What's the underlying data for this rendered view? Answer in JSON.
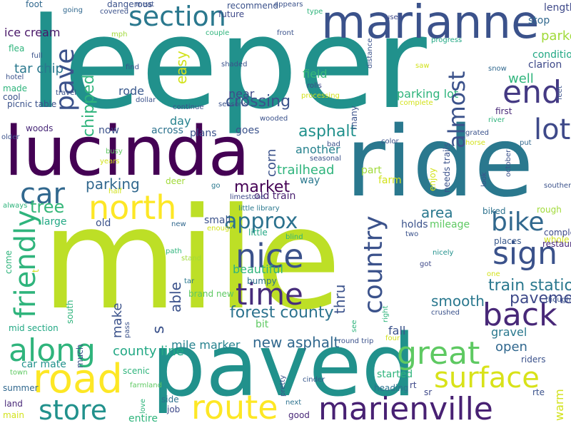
{
  "words": [
    {
      "text": "mile",
      "color": "#bddf26"
    },
    {
      "text": "leeper",
      "color": "#21918c"
    },
    {
      "text": "ride",
      "color": "#2a788e"
    },
    {
      "text": "lucinda",
      "color": "#440154"
    },
    {
      "text": "paved",
      "color": "#21918c"
    },
    {
      "text": "marianne",
      "color": "#3b528b"
    },
    {
      "text": "marienville",
      "color": "#482173"
    },
    {
      "text": "road",
      "color": "#fde725"
    },
    {
      "text": "route",
      "color": "#fde725"
    },
    {
      "text": "great",
      "color": "#5ec962"
    },
    {
      "text": "north",
      "color": "#fde725"
    },
    {
      "text": "section",
      "color": "#2a788e"
    },
    {
      "text": "surface",
      "color": "#d8e219"
    },
    {
      "text": "along",
      "color": "#2fb47c"
    },
    {
      "text": "store",
      "color": "#21918c"
    },
    {
      "text": "nice",
      "color": "#3b528b"
    },
    {
      "text": "time",
      "color": "#472d7b"
    },
    {
      "text": "back",
      "color": "#482878"
    },
    {
      "text": "sign",
      "color": "#3b528b"
    },
    {
      "text": "lot",
      "color": "#3e4989"
    },
    {
      "text": "end",
      "color": "#443983"
    },
    {
      "text": "car",
      "color": "#31688e"
    },
    {
      "text": "bike",
      "color": "#31688e"
    },
    {
      "text": "approx",
      "color": "#2c728e"
    },
    {
      "text": "asphalt",
      "color": "#21918c"
    },
    {
      "text": "tree",
      "color": "#35b779"
    },
    {
      "text": "market",
      "color": "#440154"
    },
    {
      "text": "parking",
      "color": "#31688e"
    },
    {
      "text": "train station",
      "color": "#2a788e"
    },
    {
      "text": "forest county",
      "color": "#2c728e"
    },
    {
      "text": "new asphalt",
      "color": "#31688e"
    },
    {
      "text": "area",
      "color": "#2a788e"
    },
    {
      "text": "smooth",
      "color": "#2a788e"
    },
    {
      "text": "pavement",
      "color": "#3e4989"
    },
    {
      "text": "mile marker",
      "color": "#26828e"
    },
    {
      "text": "county line",
      "color": "#22a884"
    },
    {
      "text": "crossing",
      "color": "#3b528b"
    },
    {
      "text": "trailhead",
      "color": "#2fb47c"
    },
    {
      "text": "beautiful",
      "color": "#2fb47c"
    },
    {
      "text": "gravel",
      "color": "#2a788e"
    },
    {
      "text": "open",
      "color": "#31688e"
    },
    {
      "text": "well",
      "color": "#2fb47c"
    },
    {
      "text": "parked",
      "color": "#a0da39"
    },
    {
      "text": "tar chip",
      "color": "#2a788e"
    },
    {
      "text": "ice cream",
      "color": "#481668"
    },
    {
      "text": "rode",
      "color": "#38588c"
    },
    {
      "text": "near",
      "color": "#3e4989"
    },
    {
      "text": "field",
      "color": "#37b878"
    },
    {
      "text": "another",
      "color": "#26828e"
    },
    {
      "text": "parking lot",
      "color": "#2fb47c"
    },
    {
      "text": "old train",
      "color": "#481f70"
    },
    {
      "text": "part",
      "color": "#a0da39"
    },
    {
      "text": "farm",
      "color": "#d2e21b"
    },
    {
      "text": "way",
      "color": "#2a788e"
    },
    {
      "text": "old",
      "color": "#3b528b"
    },
    {
      "text": "large",
      "color": "#22a884"
    },
    {
      "text": "car mate",
      "color": "#21918c"
    },
    {
      "text": "day",
      "color": "#26828e"
    },
    {
      "text": "goes",
      "color": "#3b528b"
    },
    {
      "text": "now",
      "color": "#3b528b"
    },
    {
      "text": "across",
      "color": "#2c728e"
    },
    {
      "text": "plans",
      "color": "#3b528b"
    },
    {
      "text": "woods",
      "color": "#482878"
    },
    {
      "text": "first",
      "color": "#482878"
    },
    {
      "text": "clarion",
      "color": "#3e4989"
    },
    {
      "text": "condition",
      "color": "#22a884"
    },
    {
      "text": "stop",
      "color": "#31688e"
    },
    {
      "text": "length",
      "color": "#3e4989"
    },
    {
      "text": "rough",
      "color": "#a0da39"
    },
    {
      "text": "mileage",
      "color": "#5ec962"
    },
    {
      "text": "holds",
      "color": "#3b528b"
    },
    {
      "text": "small",
      "color": "#3b528b"
    },
    {
      "text": "whole",
      "color": "#d2e21b"
    },
    {
      "text": "completed",
      "color": "#3e4989"
    },
    {
      "text": "restaurant",
      "color": "#482878"
    },
    {
      "text": "places",
      "color": "#38588c"
    },
    {
      "text": "biked",
      "color": "#2c728e"
    },
    {
      "text": "fall",
      "color": "#3b528b"
    },
    {
      "text": "bit",
      "color": "#5ec962"
    },
    {
      "text": "scenic",
      "color": "#2fb47c"
    },
    {
      "text": "started",
      "color": "#2fb47c"
    },
    {
      "text": "heading",
      "color": "#2c728e"
    },
    {
      "text": "rt",
      "color": "#3e4989"
    },
    {
      "text": "sr",
      "color": "#3e4989"
    },
    {
      "text": "rte",
      "color": "#3b528b"
    },
    {
      "text": "riders",
      "color": "#3b528b"
    },
    {
      "text": "entire",
      "color": "#2fb47c"
    },
    {
      "text": "job",
      "color": "#3e4989"
    },
    {
      "text": "side",
      "color": "#2c728e"
    },
    {
      "text": "good",
      "color": "#482878"
    },
    {
      "text": "next",
      "color": "#2c728e"
    },
    {
      "text": "cinder",
      "color": "#38588c"
    },
    {
      "text": "main",
      "color": "#d2e21b"
    },
    {
      "text": "land",
      "color": "#482878"
    },
    {
      "text": "summer",
      "color": "#31688e"
    },
    {
      "text": "town",
      "color": "#5ec962"
    },
    {
      "text": "farmland",
      "color": "#5ec962"
    },
    {
      "text": "mid section",
      "color": "#22a884"
    },
    {
      "text": "brand new",
      "color": "#5ec962"
    },
    {
      "text": "tar",
      "color": "#2a788e"
    },
    {
      "text": "stand",
      "color": "#a0da39"
    },
    {
      "text": "path",
      "color": "#2fb47c"
    },
    {
      "text": "new",
      "color": "#31688e"
    },
    {
      "text": "enough",
      "color": "#d2e21b"
    },
    {
      "text": "bumpy",
      "color": "#2c728e"
    },
    {
      "text": "little",
      "color": "#22a884"
    },
    {
      "text": "blind",
      "color": "#2fb47c"
    },
    {
      "text": "two",
      "color": "#3b528b"
    },
    {
      "text": "nicely",
      "color": "#21918c"
    },
    {
      "text": "got",
      "color": "#3e4989"
    },
    {
      "text": "one",
      "color": "#d2e21b"
    },
    {
      "text": "though",
      "color": "#3b528b"
    },
    {
      "text": "round trip",
      "color": "#3b528b"
    },
    {
      "text": "four",
      "color": "#d2e21b"
    },
    {
      "text": "crushed",
      "color": "#3b528b"
    },
    {
      "text": "little library",
      "color": "#2a788e"
    },
    {
      "text": "limestone",
      "color": "#3e4989"
    },
    {
      "text": "go",
      "color": "#2a788e"
    },
    {
      "text": "deer",
      "color": "#a0da39"
    },
    {
      "text": "half",
      "color": "#d2e21b"
    },
    {
      "text": "years",
      "color": "#d2e21b"
    },
    {
      "text": "busy",
      "color": "#5ec962"
    },
    {
      "text": "bad",
      "color": "#3b528b"
    },
    {
      "text": "seasonal",
      "color": "#3b528b"
    },
    {
      "text": "color",
      "color": "#3b528b"
    },
    {
      "text": "grated",
      "color": "#3b528b"
    },
    {
      "text": "horse",
      "color": "#d2e21b"
    },
    {
      "text": "put",
      "color": "#31688e"
    },
    {
      "text": "southern",
      "color": "#3b528b"
    },
    {
      "text": "river",
      "color": "#2fb47c"
    },
    {
      "text": "snow",
      "color": "#31688e"
    },
    {
      "text": "saw",
      "color": "#d2e21b"
    },
    {
      "text": "complete",
      "color": "#d2e21b"
    },
    {
      "text": "rolls",
      "color": "#3e4989"
    },
    {
      "text": "processing",
      "color": "#d2e21b"
    },
    {
      "text": "progress",
      "color": "#22a884"
    },
    {
      "text": "front",
      "color": "#3b528b"
    },
    {
      "text": "type",
      "color": "#2fb47c"
    },
    {
      "text": "used",
      "color": "#3e4989"
    },
    {
      "text": "appears",
      "color": "#3b528b"
    },
    {
      "text": "recommend",
      "color": "#3b528b"
    },
    {
      "text": "future",
      "color": "#3e4989"
    },
    {
      "text": "couple",
      "color": "#2fb47c"
    },
    {
      "text": "shaded",
      "color": "#3b528b"
    },
    {
      "text": "wooded",
      "color": "#3b528b"
    },
    {
      "text": "seasons",
      "color": "#3b528b"
    },
    {
      "text": "continue",
      "color": "#3b528b"
    },
    {
      "text": "dollar",
      "color": "#3b528b"
    },
    {
      "text": "find",
      "color": "#3b528b"
    },
    {
      "text": "mph",
      "color": "#a0da39"
    },
    {
      "text": "covered",
      "color": "#3b528b"
    },
    {
      "text": "meat",
      "color": "#3b528b"
    },
    {
      "text": "dangerous",
      "color": "#3b528b"
    },
    {
      "text": "going",
      "color": "#31688e"
    },
    {
      "text": "foot",
      "color": "#31688e"
    },
    {
      "text": "flea",
      "color": "#2fb47c"
    },
    {
      "text": "full",
      "color": "#3b528b"
    },
    {
      "text": "hotel",
      "color": "#3b528b"
    },
    {
      "text": "made",
      "color": "#2fb47c"
    },
    {
      "text": "cool",
      "color": "#3b528b"
    },
    {
      "text": "travel",
      "color": "#3b528b"
    },
    {
      "text": "picnic table",
      "color": "#3b528b"
    },
    {
      "text": "older",
      "color": "#3b528b"
    },
    {
      "text": "always",
      "color": "#2fb47c"
    },
    {
      "text": "friendly",
      "color": "#2fb47c"
    },
    {
      "text": "country",
      "color": "#3b528b"
    },
    {
      "text": "pave",
      "color": "#3b528b"
    },
    {
      "text": "almost",
      "color": "#3b528b"
    },
    {
      "text": "chipped",
      "color": "#2fb47c"
    },
    {
      "text": "s",
      "color": "#3b528b"
    },
    {
      "text": "corn",
      "color": "#3b528b"
    },
    {
      "text": "thru",
      "color": "#3b528b"
    },
    {
      "text": "able",
      "color": "#3b528b"
    },
    {
      "text": "make",
      "color": "#3b528b"
    },
    {
      "text": "easy",
      "color": "#d2e21b"
    },
    {
      "text": "warm",
      "color": "#d2e21b"
    },
    {
      "text": "enjoy",
      "color": "#d2e21b"
    },
    {
      "text": "needs trails",
      "color": "#3b528b"
    },
    {
      "text": "look",
      "color": "#3b528b"
    },
    {
      "text": "october",
      "color": "#3b528b"
    },
    {
      "text": "feet",
      "color": "#3b528b"
    },
    {
      "text": "many",
      "color": "#3b528b"
    },
    {
      "text": "distance",
      "color": "#3b528b"
    },
    {
      "text": "come",
      "color": "#2fb47c"
    },
    {
      "text": "t",
      "color": "#d2e21b"
    },
    {
      "text": "south",
      "color": "#2fb47c"
    },
    {
      "text": "much",
      "color": "#3b528b"
    },
    {
      "text": "pass",
      "color": "#3b528b"
    },
    {
      "text": "love",
      "color": "#2fb47c"
    },
    {
      "text": "pretty",
      "color": "#3b528b"
    },
    {
      "text": "see",
      "color": "#2fb47c"
    },
    {
      "text": "right",
      "color": "#2fb47c"
    }
  ]
}
